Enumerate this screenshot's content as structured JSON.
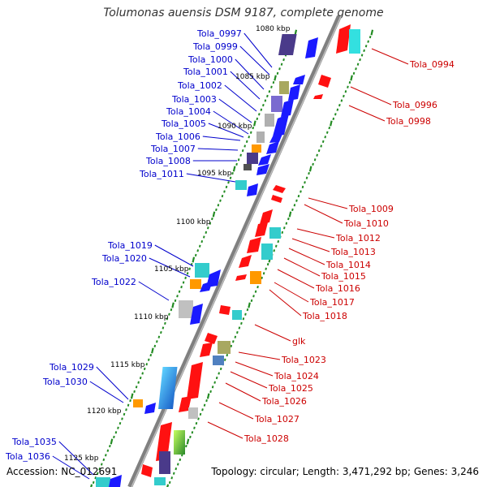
{
  "title": "Tolumonas auensis DSM 9187, complete genome",
  "footer": {
    "accession": "Accession: NC_012691",
    "stats": "Topology: circular; Length: 3,471,292 bp; Genes: 3,246"
  },
  "colors": {
    "backbone": "#808080",
    "tick": "#228B22",
    "left_label": "#0000CC",
    "right_label": "#CC0000"
  },
  "kbp_labels": [
    "1080 kbp",
    "1085 kbp",
    "1090 kbp",
    "1095 kbp",
    "1100 kbp",
    "1105 kbp",
    "1110 kbp",
    "1115 kbp",
    "1120 kbp",
    "1125 kbp"
  ],
  "left_genes": [
    "Tola_0997",
    "Tola_0999",
    "Tola_1000",
    "Tola_1001",
    "Tola_1002",
    "Tola_1003",
    "Tola_1004",
    "Tola_1005",
    "Tola_1006",
    "Tola_1007",
    "Tola_1008",
    "Tola_1011",
    "Tola_1019",
    "Tola_1020",
    "Tola_1022",
    "Tola_1029",
    "Tola_1030",
    "Tola_1035",
    "Tola_1036"
  ],
  "right_genes": [
    "Tola_0994",
    "Tola_0996",
    "Tola_0998",
    "Tola_1009",
    "Tola_1010",
    "Tola_1012",
    "Tola_1013",
    "Tola_1014",
    "Tola_1015",
    "Tola_1016",
    "Tola_1017",
    "Tola_1018",
    "glk",
    "Tola_1023",
    "Tola_1024",
    "Tola_1025",
    "Tola_1026",
    "Tola_1027",
    "Tola_1028"
  ]
}
